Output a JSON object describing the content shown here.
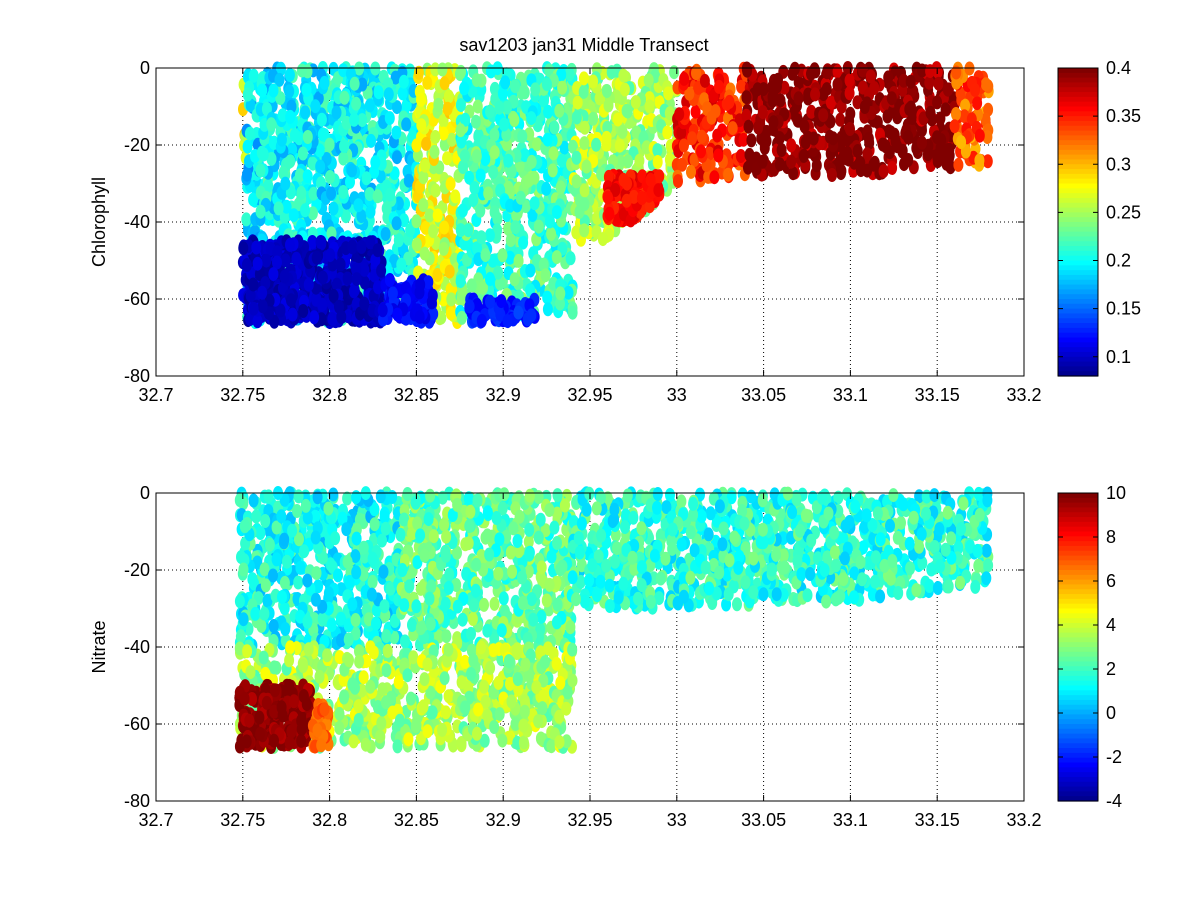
{
  "figure_title": "sav1203 jan31   Middle Transect",
  "chart_data": [
    {
      "type": "scatter",
      "ylabel": "Chlorophyll",
      "xlim": [
        32.7,
        33.2
      ],
      "ylim": [
        -80,
        0
      ],
      "xticks": [
        "32.7",
        "32.75",
        "32.8",
        "32.85",
        "32.9",
        "32.95",
        "33",
        "33.05",
        "33.1",
        "33.15",
        "33.2"
      ],
      "yticks": [
        "0",
        "-20",
        "-40",
        "-60",
        "-80"
      ],
      "grid": true,
      "colormap": "jet",
      "clim": [
        0.08,
        0.4
      ],
      "colorbar_ticks": [
        "0.4",
        "0.35",
        "0.3",
        "0.25",
        "0.2",
        "0.15",
        "0.1"
      ],
      "bottom_profile": [
        [
          32.75,
          -66
        ],
        [
          32.94,
          -67
        ],
        [
          32.95,
          -56
        ],
        [
          32.96,
          -44
        ],
        [
          32.98,
          -38
        ],
        [
          33.0,
          -30
        ],
        [
          33.04,
          -28
        ],
        [
          33.1,
          -28
        ],
        [
          33.18,
          -25
        ]
      ],
      "regions": [
        {
          "x": [
            32.75,
            32.752
          ],
          "y": [
            -25,
            0
          ],
          "value": 0.28
        },
        {
          "x": [
            32.752,
            32.76
          ],
          "y": [
            -66,
            0
          ],
          "value": 0.19
        },
        {
          "x": [
            32.76,
            32.85
          ],
          "y": [
            -66,
            0
          ],
          "value": 0.2
        },
        {
          "x": [
            32.85,
            32.875
          ],
          "y": [
            -66,
            0
          ],
          "value": 0.27
        },
        {
          "x": [
            32.875,
            32.94
          ],
          "y": [
            -66,
            0
          ],
          "value": 0.22
        },
        {
          "x": [
            32.94,
            33.0
          ],
          "y": [
            -45,
            0
          ],
          "value": 0.25
        },
        {
          "x": [
            33.0,
            33.04
          ],
          "y": [
            -30,
            0
          ],
          "value": 0.35
        },
        {
          "x": [
            33.04,
            33.16
          ],
          "y": [
            -28,
            0
          ],
          "value": 0.4
        },
        {
          "x": [
            33.16,
            33.18
          ],
          "y": [
            -26,
            0
          ],
          "value": 0.33
        }
      ],
      "features": [
        {
          "x": [
            32.75,
            32.83
          ],
          "y": [
            -66,
            -45
          ],
          "value": 0.1
        },
        {
          "x": [
            32.83,
            32.86
          ],
          "y": [
            -66,
            -55
          ],
          "value": 0.12
        },
        {
          "x": [
            32.88,
            32.92
          ],
          "y": [
            -66,
            -60
          ],
          "value": 0.13
        },
        {
          "x": [
            32.96,
            32.99
          ],
          "y": [
            -40,
            -28
          ],
          "value": 0.36
        }
      ]
    },
    {
      "type": "scatter",
      "ylabel": "Nitrate",
      "xlim": [
        32.7,
        33.2
      ],
      "ylim": [
        -80,
        0
      ],
      "xticks": [
        "32.7",
        "32.75",
        "32.8",
        "32.85",
        "32.9",
        "32.95",
        "33",
        "33.05",
        "33.1",
        "33.15",
        "33.2"
      ],
      "yticks": [
        "0",
        "-20",
        "-40",
        "-60",
        "-80"
      ],
      "grid": true,
      "colormap": "jet",
      "clim": [
        -4,
        10
      ],
      "colorbar_ticks": [
        "10",
        "8",
        "6",
        "4",
        "2",
        "0",
        "-2",
        "-4"
      ],
      "bottom_profile": [
        [
          32.748,
          -66
        ],
        [
          32.94,
          -67
        ],
        [
          32.95,
          -50
        ],
        [
          32.97,
          -40
        ],
        [
          33.0,
          -30
        ],
        [
          33.05,
          -29
        ],
        [
          33.1,
          -28
        ],
        [
          33.18,
          -24
        ]
      ],
      "regions": [
        {
          "x": [
            32.748,
            32.84
          ],
          "y": [
            -40,
            0
          ],
          "value": 1.5
        },
        {
          "x": [
            32.84,
            32.94
          ],
          "y": [
            -40,
            0
          ],
          "value": 2.5
        },
        {
          "x": [
            32.748,
            32.94
          ],
          "y": [
            -66,
            -40
          ],
          "value": 3.5
        },
        {
          "x": [
            32.94,
            33.18
          ],
          "y": [
            -30,
            0
          ],
          "value": 1.8
        }
      ],
      "features": [
        {
          "x": [
            32.748,
            32.79
          ],
          "y": [
            -66,
            -50
          ],
          "value": 9.8
        },
        {
          "x": [
            32.79,
            32.8
          ],
          "y": [
            -66,
            -55
          ],
          "value": 7.0
        }
      ]
    }
  ]
}
